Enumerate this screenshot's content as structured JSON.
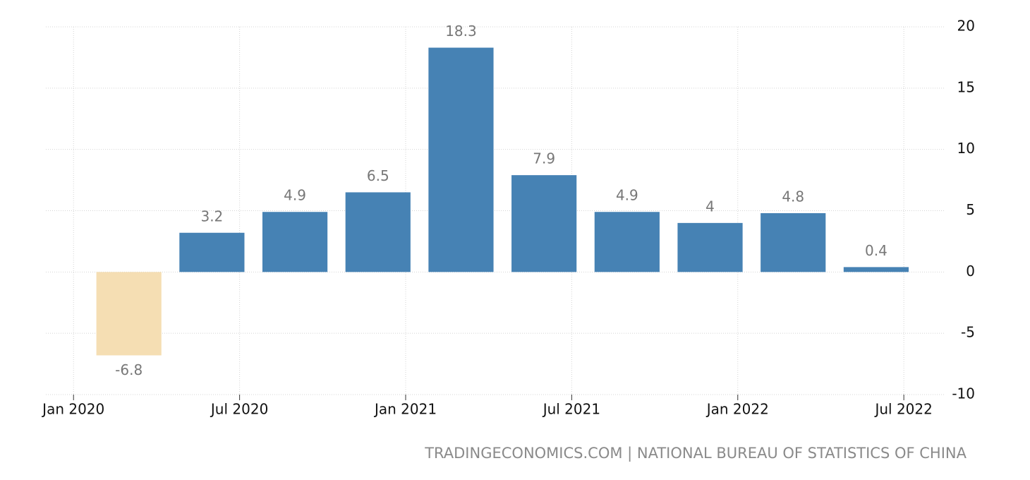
{
  "chart_data": {
    "type": "bar",
    "source": "TRADINGECONOMICS.COM | NATIONAL BUREAU OF STATISTICS OF CHINA",
    "x": [
      2,
      5,
      8,
      11,
      14,
      17,
      20,
      23,
      26,
      29
    ],
    "values": [
      -6.8,
      3.2,
      4.9,
      6.5,
      18.3,
      7.9,
      4.9,
      4,
      4.8,
      0.4
    ],
    "color": "#4682b4",
    "negative_color": "#f5deb3",
    "xlim": [
      -1,
      31.5
    ],
    "xticks": [
      {
        "value": 0,
        "label": "Jan 2020"
      },
      {
        "value": 6,
        "label": "Jul 2020"
      },
      {
        "value": 12,
        "label": "Jan 2021"
      },
      {
        "value": 18,
        "label": "Jul 2021"
      },
      {
        "value": 24,
        "label": "Jan 2022"
      },
      {
        "value": 30,
        "label": "Jul 2022"
      }
    ],
    "ylim": [
      -10,
      20
    ],
    "yticks": [
      -10,
      -5,
      0,
      5,
      10,
      15,
      20
    ],
    "grid": true
  }
}
